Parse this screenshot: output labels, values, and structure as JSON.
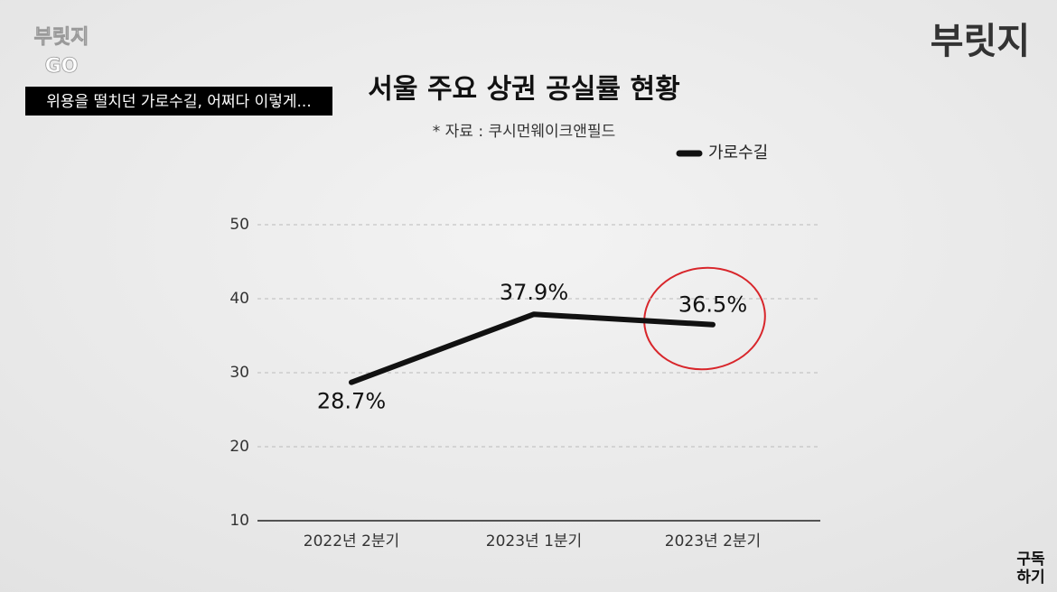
{
  "overlay": {
    "channel": [
      "부릿지",
      "GO"
    ],
    "caption": "위용을 떨치던 가로수길, 어쩌다 이렇게...",
    "logo": "부릿지",
    "subscribe": [
      "구독",
      "하기"
    ]
  },
  "chart_data": {
    "type": "line",
    "title": "서울 주요 상권 공실률 현황",
    "subtitle": "* 자료 : 쿠시먼웨이크앤필드",
    "categories": [
      "2022년 2분기",
      "2023년 1분기",
      "2023년 2분기"
    ],
    "series": [
      {
        "name": "가로수길",
        "color": "#111111",
        "values": [
          28.7,
          37.9,
          36.5
        ],
        "value_labels": [
          "28.7%",
          "37.9%",
          "36.5%"
        ]
      }
    ],
    "ylim": [
      10,
      50
    ],
    "yticks": [
      10,
      20,
      30,
      40,
      50
    ],
    "grid": true,
    "legend": "top-right"
  }
}
